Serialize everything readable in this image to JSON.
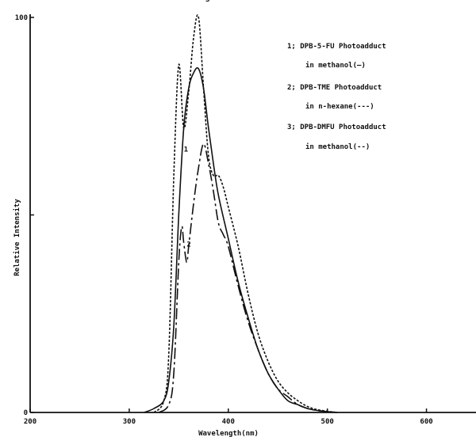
{
  "chart_data": {
    "type": "line",
    "xlabel": "Wavelength(nm)",
    "ylabel": "Relative Intensity",
    "xlim": [
      200,
      650
    ],
    "ylim": [
      0,
      100
    ],
    "x_ticks": [
      "200",
      "300",
      "400",
      "500",
      "600"
    ],
    "y_ticks": [
      "0",
      "100"
    ],
    "grid": false,
    "legend_position": "top-right",
    "legend": [
      {
        "line1": "1; DPB-5-FU Photoadduct",
        "line2": "in methanol(—)"
      },
      {
        "line1": "2; DPB-TME Photoadduct",
        "line2": "in n-hexane(---)"
      },
      {
        "line1": "3; DPB-DMFU Photoadduct",
        "line2": "in methanol(--)"
      }
    ],
    "series": [
      {
        "name": "1",
        "label": "1",
        "style": "solid",
        "x": [
          315,
          325,
          335,
          340,
          345,
          350,
          355,
          360,
          365,
          370,
          375,
          380,
          385,
          390,
          400,
          410,
          420,
          430,
          440,
          450,
          460,
          470,
          480,
          490,
          500,
          510
        ],
        "y": [
          0,
          1,
          3,
          8,
          22,
          50,
          72,
          82,
          86,
          87,
          82,
          72,
          63,
          55,
          44,
          33,
          24,
          16,
          10,
          6,
          3,
          2,
          1,
          0.5,
          0.2,
          0
        ]
      },
      {
        "name": "2",
        "label": "2",
        "style": "long-dash",
        "x": [
          330,
          340,
          345,
          350,
          353,
          355,
          358,
          360,
          365,
          370,
          375,
          380,
          385,
          390,
          395,
          400,
          410,
          420,
          430,
          440,
          450,
          460,
          470,
          480,
          490,
          500,
          510
        ],
        "y": [
          0,
          2,
          10,
          38,
          47,
          43,
          38,
          42,
          53,
          62,
          68,
          63,
          56,
          48,
          45,
          42,
          32,
          23,
          16,
          10,
          6,
          4,
          2,
          1,
          0.5,
          0.2,
          0
        ]
      },
      {
        "name": "3",
        "label": "3",
        "style": "short-dash",
        "x": [
          325,
          335,
          340,
          345,
          350,
          355,
          360,
          365,
          370,
          375,
          380,
          385,
          390,
          395,
          400,
          410,
          420,
          430,
          440,
          450,
          460,
          470,
          480,
          490,
          500,
          510
        ],
        "y": [
          0,
          3,
          15,
          60,
          88,
          72,
          81,
          95,
          100,
          82,
          65,
          60,
          60,
          57,
          52,
          42,
          30,
          20,
          13,
          8,
          5,
          3,
          1.5,
          0.7,
          0.3,
          0
        ]
      }
    ]
  }
}
